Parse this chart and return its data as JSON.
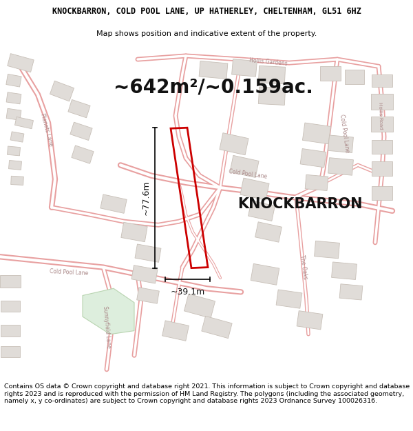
{
  "title_line1": "KNOCKBARRON, COLD POOL LANE, UP HATHERLEY, CHELTENHAM, GL51 6HZ",
  "title_line2": "Map shows position and indicative extent of the property.",
  "area_label": "~642m²/~0.159ac.",
  "property_name": "KNOCKBARRON",
  "dim_width": "~39.1m",
  "dim_height": "~77.6m",
  "footer_text": "Contains OS data © Crown copyright and database right 2021. This information is subject to Crown copyright and database rights 2023 and is reproduced with the permission of HM Land Registry. The polygons (including the associated geometry, namely x, y co-ordinates) are subject to Crown copyright and database rights 2023 Ordnance Survey 100026316.",
  "bg_color": "#ffffff",
  "map_bg": "#ffffff",
  "road_stroke": "#e8a0a0",
  "road_fill": "#fce8e8",
  "building_fill": "#e0dcd8",
  "building_outline": "#c8c0b8",
  "green_fill": "#ddeedd",
  "plot_color": "#cc0000",
  "title_fontsize": 8.5,
  "subtitle_fontsize": 8.0,
  "area_fontsize": 20,
  "dim_fontsize": 9,
  "property_fontsize": 15,
  "footer_fontsize": 6.8
}
